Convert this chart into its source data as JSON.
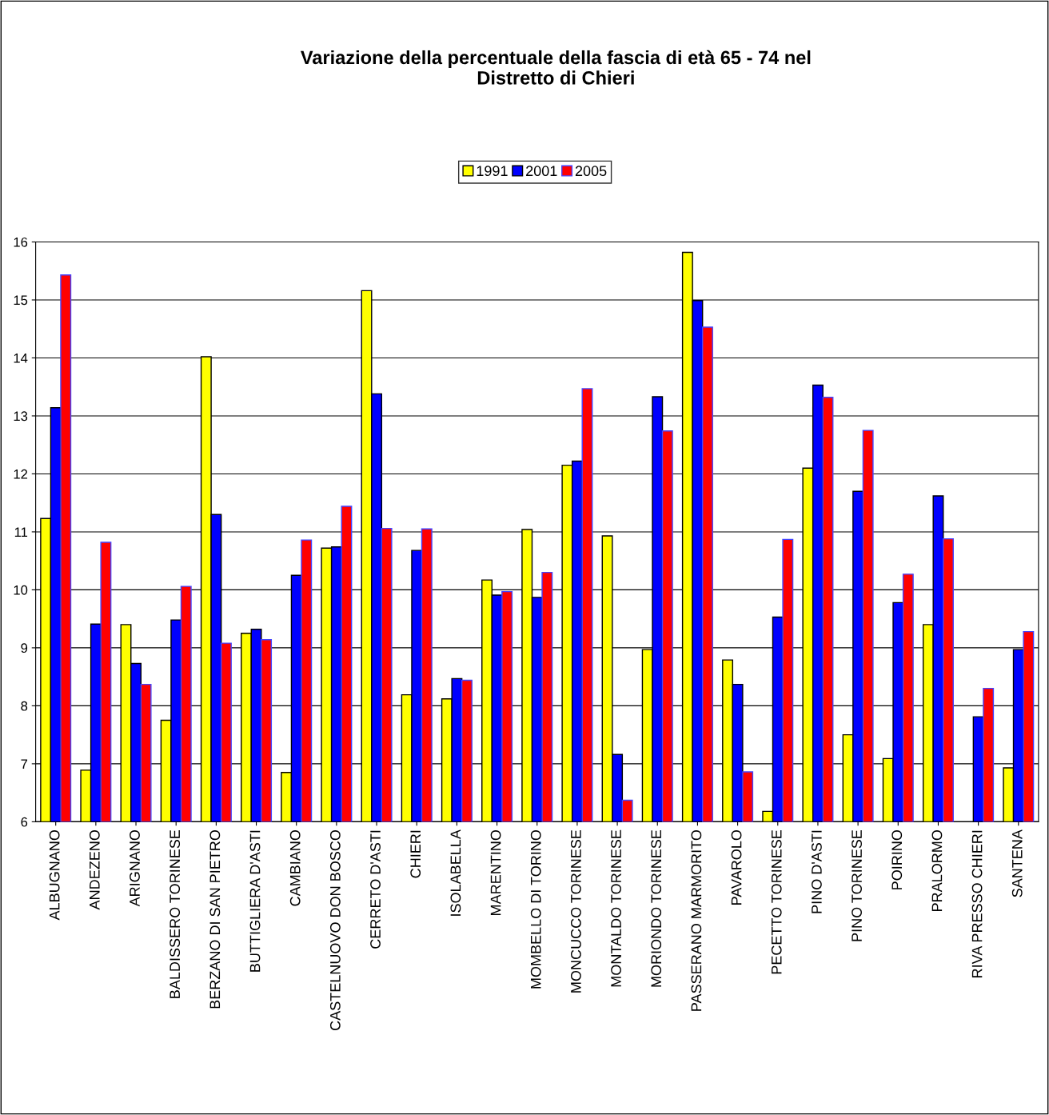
{
  "chart_data": {
    "type": "bar",
    "title": "Variazione della percentuale della fascia di età 65 - 74 nel\nDistretto di Chieri",
    "categories": [
      "ALBUGNANO",
      "ANDEZENO",
      "ARIGNANO",
      "BALDISSERO TORINESE",
      "BERZANO DI SAN PIETRO",
      "BUTTIGLIERA D'ASTI",
      "CAMBIANO",
      "CASTELNUOVO DON BOSCO",
      "CERRETO D'ASTI",
      "CHIERI",
      "ISOLABELLA",
      "MARENTINO",
      "MOMBELLO DI TORINO",
      "MONCUCCO TORINESE",
      "MONTALDO TORINESE",
      "MORIONDO TORINESE",
      "PASSERANO MARMORITO",
      "PAVAROLO",
      "PECETTO TORINESE",
      "PINO D'ASTI",
      "PINO TORINESE",
      "POIRINO",
      "PRALORMO",
      "RIVA PRESSO CHIERI",
      "SANTENA"
    ],
    "series": [
      {
        "name": "1991",
        "color": "#ffff00",
        "values": [
          11.23,
          6.89,
          9.4,
          7.75,
          14.02,
          9.25,
          6.85,
          10.72,
          15.16,
          8.19,
          8.12,
          10.17,
          11.04,
          12.15,
          10.93,
          8.97,
          15.82,
          8.79,
          6.18,
          12.1,
          7.5,
          7.09,
          9.4,
          null,
          6.93
        ]
      },
      {
        "name": "2001",
        "color": "#0000ff",
        "values": [
          13.14,
          9.41,
          8.73,
          9.48,
          11.3,
          9.32,
          10.25,
          10.74,
          13.38,
          10.68,
          8.47,
          9.91,
          9.87,
          12.22,
          7.16,
          13.33,
          14.99,
          8.37,
          9.53,
          13.53,
          11.7,
          9.78,
          11.62,
          7.81,
          8.97
        ]
      },
      {
        "name": "2005",
        "color": "#ff0000",
        "values": [
          15.43,
          10.82,
          8.37,
          10.06,
          9.08,
          9.14,
          10.86,
          11.44,
          11.06,
          11.05,
          8.44,
          9.97,
          10.3,
          13.47,
          6.37,
          12.74,
          14.53,
          6.86,
          10.87,
          13.32,
          12.75,
          10.27,
          10.88,
          8.3,
          9.28
        ]
      }
    ],
    "ylim": [
      6,
      16
    ],
    "yticks": [
      6,
      7,
      8,
      9,
      10,
      11,
      12,
      13,
      14,
      15,
      16
    ],
    "grid": "y",
    "legend": "top"
  }
}
